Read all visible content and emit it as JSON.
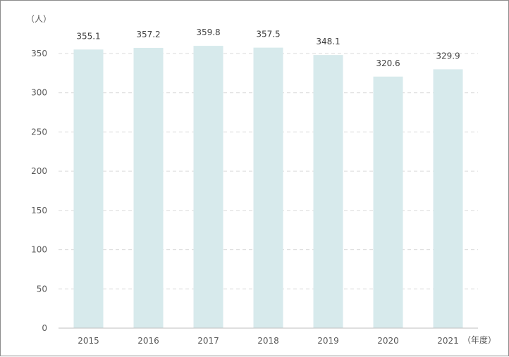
{
  "chart_data": {
    "type": "bar",
    "title": "",
    "ylabel": "（人）",
    "xlabel": "（年度）",
    "categories": [
      "2015",
      "2016",
      "2017",
      "2018",
      "2019",
      "2020",
      "2021"
    ],
    "values": [
      355.1,
      357.2,
      359.8,
      357.5,
      348.1,
      320.6,
      329.9
    ],
    "value_labels": [
      "355.1",
      "357.2",
      "359.8",
      "357.5",
      "348.1",
      "320.6",
      "329.9"
    ],
    "ylim": [
      0,
      350
    ],
    "yticks": [
      0,
      50,
      100,
      150,
      200,
      250,
      300,
      350
    ],
    "grid": true,
    "grid_style": "dashed",
    "legend": "none",
    "bar_color": "#d7eaec",
    "grid_color": "#d9d9d9"
  }
}
